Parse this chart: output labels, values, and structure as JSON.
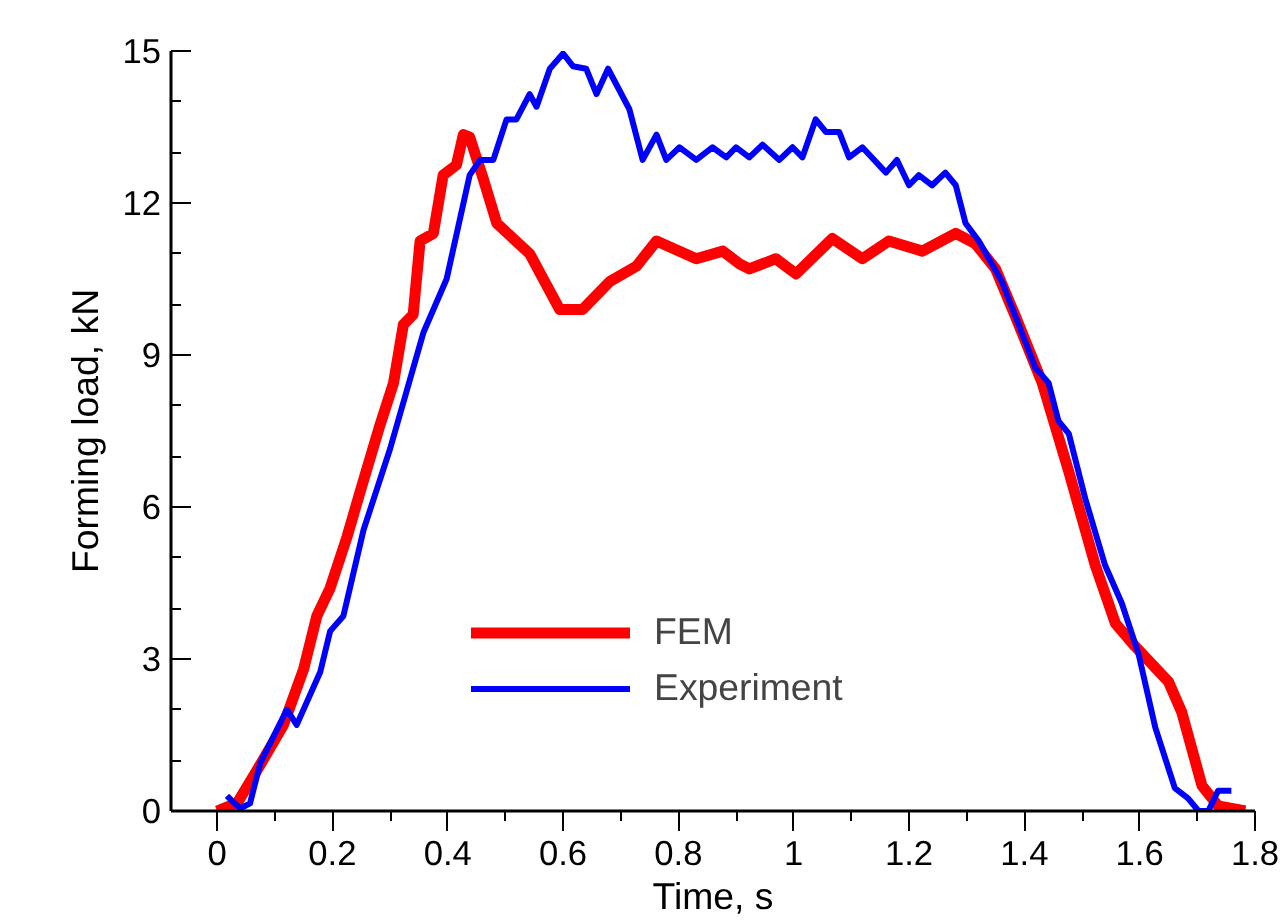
{
  "chart_data": {
    "type": "line",
    "xlabel": "Time, s",
    "ylabel": "Forming load, kN",
    "xlim": [
      -0.08,
      1.8
    ],
    "xticks": [
      0,
      0.2,
      0.4,
      0.6,
      0.8,
      1,
      1.2,
      1.4,
      1.6,
      1.8
    ],
    "ylim": [
      0,
      15
    ],
    "yticks": [
      0,
      3,
      6,
      9,
      12,
      15
    ],
    "grid": false,
    "legend": "center",
    "marker": "none",
    "line_style": "solid",
    "series": [
      {
        "name": "FEM",
        "color": "#ff0000",
        "x": [
          0,
          0.035,
          0.069,
          0.115,
          0.15,
          0.173,
          0.196,
          0.225,
          0.248,
          0.282,
          0.306,
          0.323,
          0.34,
          0.352,
          0.375,
          0.392,
          0.415,
          0.427,
          0.438,
          0.461,
          0.485,
          0.542,
          0.594,
          0.634,
          0.681,
          0.727,
          0.762,
          0.831,
          0.877,
          0.906,
          0.923,
          0.969,
          1.004,
          1.067,
          1.119,
          1.165,
          1.223,
          1.281,
          1.315,
          1.35,
          1.385,
          1.431,
          1.477,
          1.523,
          1.558,
          1.592,
          1.65,
          1.673,
          1.708,
          1.736,
          1.783
        ],
        "values": [
          0,
          0.16,
          0.8,
          1.7,
          2.8,
          3.85,
          4.4,
          5.4,
          6.3,
          7.6,
          8.45,
          9.6,
          9.8,
          11.25,
          11.4,
          12.55,
          12.75,
          13.35,
          13.3,
          12.5,
          11.6,
          11,
          9.9,
          9.9,
          10.45,
          10.75,
          11.25,
          10.9,
          11.05,
          10.8,
          10.7,
          10.9,
          10.6,
          11.3,
          10.9,
          11.25,
          11.05,
          11.4,
          11.2,
          10.7,
          9.75,
          8.45,
          6.7,
          4.85,
          3.7,
          3.25,
          2.55,
          1.95,
          0.5,
          0.1,
          0
        ]
      },
      {
        "name": "Experiment",
        "color": "#0000ff",
        "x": [
          0.017,
          0.04,
          0.057,
          0.075,
          0.121,
          0.138,
          0.179,
          0.196,
          0.219,
          0.254,
          0.3,
          0.358,
          0.398,
          0.438,
          0.456,
          0.479,
          0.502,
          0.519,
          0.542,
          0.554,
          0.577,
          0.6,
          0.617,
          0.64,
          0.658,
          0.678,
          0.715,
          0.738,
          0.762,
          0.779,
          0.802,
          0.831,
          0.859,
          0.883,
          0.9,
          0.923,
          0.946,
          0.975,
          0.998,
          1.015,
          1.038,
          1.056,
          1.079,
          1.096,
          1.119,
          1.16,
          1.179,
          1.2,
          1.217,
          1.24,
          1.263,
          1.281,
          1.298,
          1.321,
          1.361,
          1.39,
          1.419,
          1.442,
          1.459,
          1.477,
          1.506,
          1.54,
          1.569,
          1.598,
          1.627,
          1.661,
          1.684,
          1.702,
          1.719,
          1.736,
          1.759
        ],
        "values": [
          0.3,
          0.05,
          0.15,
          0.95,
          2,
          1.7,
          2.75,
          3.55,
          3.85,
          5.55,
          7.15,
          9.45,
          10.5,
          12.55,
          12.85,
          12.85,
          13.65,
          13.65,
          14.15,
          13.9,
          14.65,
          14.95,
          14.7,
          14.65,
          14.15,
          14.65,
          13.85,
          12.85,
          13.35,
          12.85,
          13.1,
          12.85,
          13.1,
          12.9,
          13.1,
          12.9,
          13.15,
          12.85,
          13.1,
          12.9,
          13.65,
          13.4,
          13.4,
          12.9,
          13.1,
          12.6,
          12.85,
          12.35,
          12.55,
          12.35,
          12.6,
          12.35,
          11.6,
          11.25,
          10.45,
          9.6,
          8.75,
          8.45,
          7.7,
          7.45,
          6.15,
          4.85,
          4.1,
          3.1,
          1.65,
          0.45,
          0.25,
          0,
          0,
          0.4,
          0.4
        ]
      }
    ]
  }
}
